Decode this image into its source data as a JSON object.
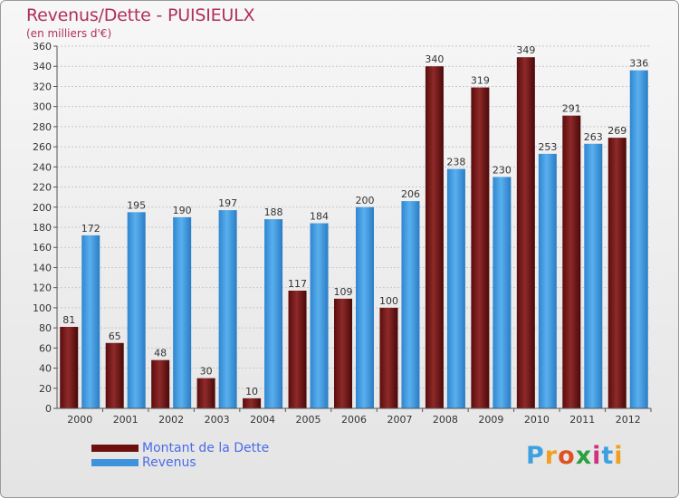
{
  "header": {
    "title": "Revenus/Dette - PUISIEULX",
    "subtitle": "(en milliers d'€)"
  },
  "chart_data": {
    "type": "bar",
    "categories": [
      "2000",
      "2001",
      "2002",
      "2003",
      "2004",
      "2005",
      "2006",
      "2007",
      "2008",
      "2009",
      "2010",
      "2011",
      "2012"
    ],
    "series": [
      {
        "name": "Montant de la Dette",
        "color": "#7a1a1a",
        "values": [
          81,
          65,
          48,
          30,
          10,
          117,
          109,
          100,
          340,
          319,
          349,
          291,
          269
        ]
      },
      {
        "name": "Revenus",
        "color": "#4a9ee0",
        "values": [
          172,
          195,
          190,
          197,
          188,
          184,
          200,
          206,
          238,
          230,
          253,
          263,
          336
        ]
      }
    ],
    "title": "Revenus/Dette - PUISIEULX",
    "subtitle": "(en milliers d'€)",
    "ylim": [
      0,
      360
    ],
    "yticks": [
      0,
      20,
      40,
      60,
      80,
      100,
      120,
      140,
      160,
      180,
      200,
      220,
      240,
      260,
      280,
      300,
      320,
      340,
      360
    ],
    "grid": true,
    "legend": "bottom-left"
  },
  "legend": {
    "items": [
      {
        "label": "Montant de la Dette",
        "color": "#6b0f0f"
      },
      {
        "label": "Revenus",
        "color": "#3f93dc"
      }
    ]
  },
  "logo": {
    "letters": [
      "P",
      "r",
      "o",
      "x",
      "i",
      "t",
      "i"
    ],
    "colors": [
      "#3fa0e0",
      "#f0a020",
      "#e05020",
      "#2aa040",
      "#d03080",
      "#3fa0e0",
      "#f0a020"
    ]
  }
}
